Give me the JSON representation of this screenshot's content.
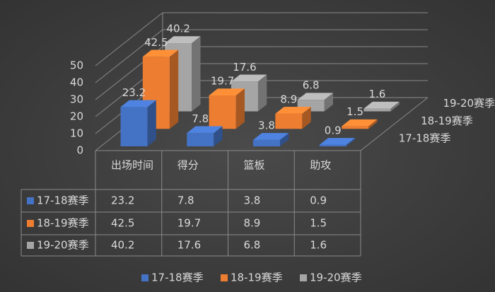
{
  "chart_data": {
    "type": "bar3d",
    "categories": [
      "出场时间",
      "得分",
      "篮板",
      "助攻"
    ],
    "series": [
      {
        "name": "17-18赛季",
        "color": "#4472c4",
        "values": [
          23.2,
          7.8,
          3.8,
          0.9
        ]
      },
      {
        "name": "18-19赛季",
        "color": "#ed7d31",
        "values": [
          42.5,
          19.7,
          8.9,
          1.5
        ]
      },
      {
        "name": "19-20赛季",
        "color": "#a5a5a5",
        "values": [
          40.2,
          17.6,
          6.8,
          1.6
        ]
      }
    ],
    "ylim": [
      0,
      50
    ],
    "yticks": [
      0,
      10,
      20,
      30,
      40,
      50
    ],
    "grid": true,
    "data_table": true,
    "legend": "bottom"
  }
}
